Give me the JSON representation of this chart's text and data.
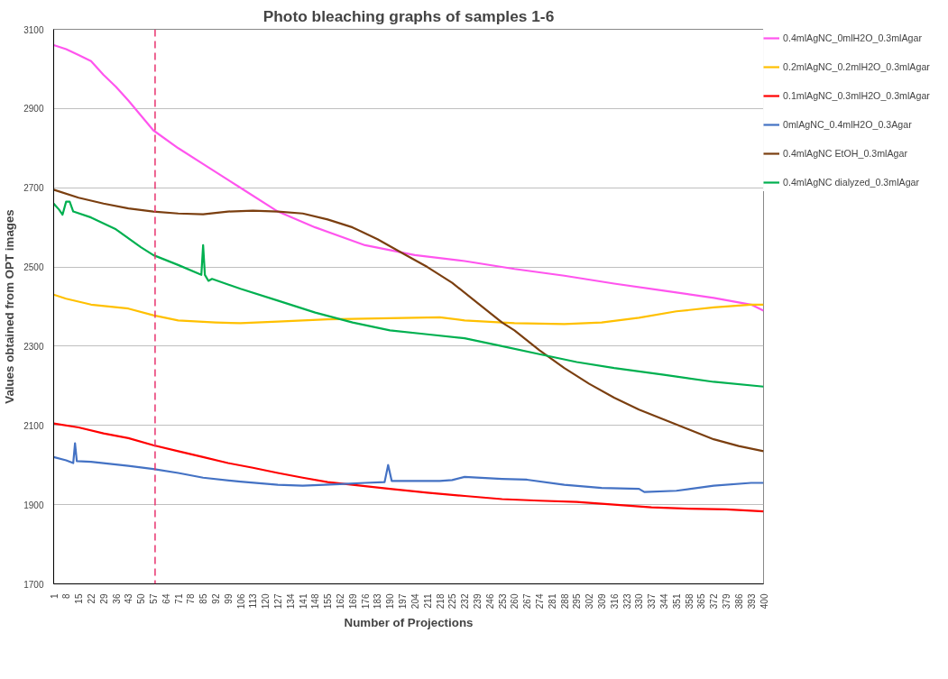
{
  "chart_data": {
    "type": "line",
    "title": "Photo bleaching graphs of samples 1-6",
    "xlabel": "Number of Projections",
    "ylabel": "Values obtained from OPT images",
    "xlim": [
      1,
      400
    ],
    "xticks": [
      1,
      8,
      15,
      22,
      29,
      36,
      43,
      50,
      57,
      64,
      71,
      78,
      85,
      92,
      99,
      106,
      113,
      120,
      127,
      134,
      141,
      148,
      155,
      162,
      169,
      176,
      183,
      190,
      197,
      204,
      211,
      218,
      225,
      232,
      239,
      246,
      253,
      260,
      267,
      274,
      281,
      288,
      295,
      302,
      309,
      316,
      323,
      330,
      337,
      344,
      351,
      358,
      365,
      372,
      379,
      386,
      393,
      400
    ],
    "ylim": [
      1700,
      3100
    ],
    "yticks": [
      1700,
      1900,
      2100,
      2300,
      2500,
      2700,
      2900,
      3100
    ],
    "grid": "y",
    "legend": "right",
    "marker": "none",
    "line_style": "solid",
    "ref_lines": [
      {
        "axis": "x",
        "value": 58,
        "color": "#e8326e",
        "line_style": "dashed"
      }
    ],
    "series": [
      {
        "name": "0.4mlAgNC_0mlH2O_0.3mlAgar",
        "color": "#ff55ee",
        "x": [
          1,
          8,
          15,
          22,
          29,
          36,
          43,
          57,
          71,
          85,
          106,
          127,
          148,
          176,
          204,
          232,
          260,
          288,
          316,
          344,
          372,
          393,
          400
        ],
        "values": [
          3060,
          3050,
          3035,
          3020,
          2985,
          2955,
          2920,
          2845,
          2800,
          2760,
          2700,
          2640,
          2600,
          2555,
          2530,
          2515,
          2495,
          2478,
          2458,
          2440,
          2422,
          2405,
          2390
        ]
      },
      {
        "name": "0.2mlAgNC_0.2mlH2O_0.3mlAgar",
        "color": "#ffc000",
        "x": [
          1,
          8,
          22,
          43,
          57,
          71,
          92,
          106,
          127,
          155,
          183,
          204,
          218,
          232,
          260,
          288,
          309,
          330,
          351,
          372,
          393,
          400
        ],
        "values": [
          2430,
          2420,
          2405,
          2395,
          2378,
          2365,
          2360,
          2358,
          2362,
          2368,
          2370,
          2372,
          2373,
          2365,
          2358,
          2356,
          2360,
          2372,
          2388,
          2398,
          2405,
          2405
        ]
      },
      {
        "name": "0.1mlAgNC_0.3mlH2O_0.3mlAgar",
        "color": "#ff0000",
        "x": [
          1,
          15,
          29,
          43,
          57,
          71,
          85,
          99,
          113,
          127,
          141,
          155,
          169,
          190,
          211,
          232,
          253,
          274,
          295,
          316,
          337,
          358,
          379,
          400
        ],
        "values": [
          2105,
          2095,
          2080,
          2068,
          2050,
          2035,
          2020,
          2005,
          1993,
          1980,
          1968,
          1957,
          1950,
          1940,
          1930,
          1922,
          1914,
          1910,
          1907,
          1900,
          1893,
          1890,
          1888,
          1883
        ]
      },
      {
        "name": "0mlAgNC_0.4mlH2O_0.3Agar",
        "color": "#4472c4",
        "x": [
          1,
          8,
          12,
          13,
          14,
          22,
          43,
          57,
          71,
          85,
          106,
          127,
          141,
          162,
          176,
          187,
          189,
          191,
          197,
          218,
          225,
          232,
          253,
          267,
          288,
          309,
          330,
          333,
          351,
          372,
          393,
          400
        ],
        "values": [
          2020,
          2012,
          2005,
          2055,
          2010,
          2008,
          1998,
          1990,
          1980,
          1968,
          1958,
          1950,
          1948,
          1952,
          1955,
          1957,
          2000,
          1960,
          1960,
          1960,
          1962,
          1970,
          1965,
          1963,
          1950,
          1942,
          1940,
          1932,
          1935,
          1948,
          1955,
          1955
        ]
      },
      {
        "name": "0.4mlAgNC EtOH_0.3mlAgar",
        "color": "#7b3f10",
        "x": [
          1,
          15,
          29,
          43,
          57,
          71,
          85,
          99,
          113,
          127,
          141,
          155,
          169,
          183,
          197,
          211,
          225,
          239,
          253,
          260,
          274,
          288,
          302,
          316,
          330,
          344,
          358,
          372,
          386,
          400
        ],
        "values": [
          2695,
          2675,
          2660,
          2648,
          2640,
          2635,
          2633,
          2640,
          2642,
          2640,
          2635,
          2620,
          2600,
          2570,
          2535,
          2500,
          2460,
          2410,
          2360,
          2340,
          2290,
          2245,
          2205,
          2170,
          2140,
          2115,
          2090,
          2065,
          2048,
          2035
        ]
      },
      {
        "name": "0.4mlAgNC dialyzed_0.3mlAgar",
        "color": "#00b050",
        "x": [
          1,
          4,
          6,
          8,
          10,
          12,
          22,
          36,
          50,
          57,
          71,
          84,
          85,
          86,
          88,
          90,
          106,
          127,
          148,
          169,
          190,
          211,
          232,
          253,
          274,
          295,
          316,
          344,
          372,
          400
        ],
        "values": [
          2660,
          2645,
          2632,
          2665,
          2665,
          2640,
          2625,
          2595,
          2550,
          2530,
          2505,
          2480,
          2555,
          2480,
          2465,
          2470,
          2445,
          2415,
          2385,
          2360,
          2340,
          2330,
          2320,
          2300,
          2280,
          2260,
          2245,
          2228,
          2210,
          2198
        ]
      }
    ]
  }
}
